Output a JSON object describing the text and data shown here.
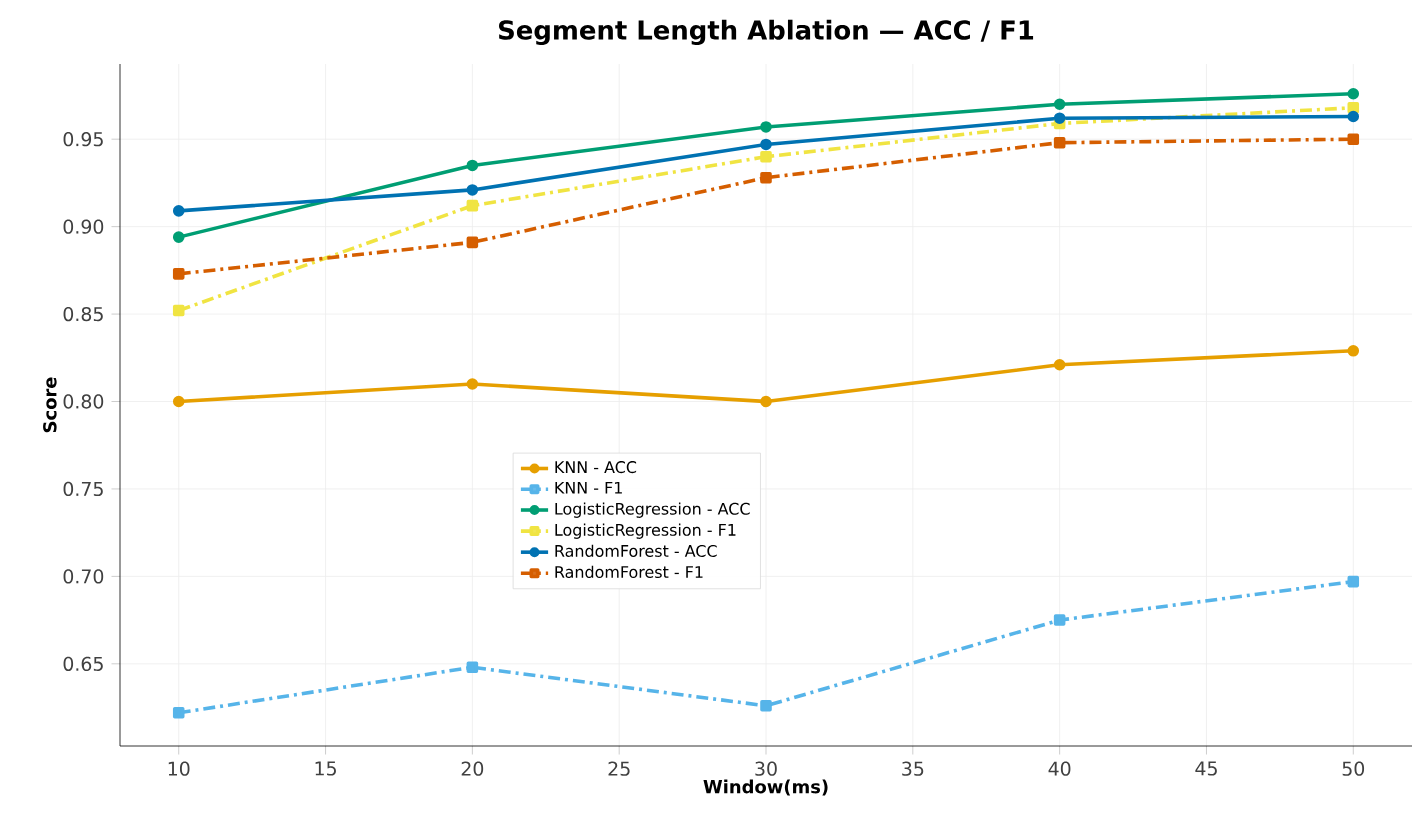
{
  "chart_data": {
    "type": "line",
    "title": "Segment Length Ablation — ACC / F1",
    "xlabel": "Window(ms)",
    "ylabel": "Score",
    "x": [
      10,
      20,
      30,
      40,
      50
    ],
    "series": [
      {
        "name": "KNN - ACC",
        "color": "#e69f00",
        "marker": "circle",
        "line_style": "solid",
        "values": [
          0.8,
          0.81,
          0.8,
          0.821,
          0.829
        ]
      },
      {
        "name": "KNN - F1",
        "color": "#56b4e9",
        "marker": "square",
        "line_style": "dashdot",
        "values": [
          0.622,
          0.648,
          0.626,
          0.675,
          0.697
        ]
      },
      {
        "name": "LogisticRegression - ACC",
        "color": "#009e73",
        "marker": "circle",
        "line_style": "solid",
        "values": [
          0.894,
          0.935,
          0.957,
          0.97,
          0.976
        ]
      },
      {
        "name": "LogisticRegression - F1",
        "color": "#f0e442",
        "marker": "square",
        "line_style": "dashdot",
        "values": [
          0.852,
          0.912,
          0.94,
          0.959,
          0.968
        ]
      },
      {
        "name": "RandomForest - ACC",
        "color": "#0072b2",
        "marker": "circle",
        "line_style": "solid",
        "values": [
          0.909,
          0.921,
          0.947,
          0.962,
          0.963
        ]
      },
      {
        "name": "RandomForest - F1",
        "color": "#d55e00",
        "marker": "square",
        "line_style": "dashdot",
        "values": [
          0.873,
          0.891,
          0.928,
          0.948,
          0.95
        ]
      }
    ],
    "xlim": [
      8,
      52
    ],
    "ylim": [
      0.603,
      0.993
    ],
    "xticks": [
      10,
      15,
      20,
      25,
      30,
      35,
      40,
      45,
      50
    ],
    "yticks": [
      0.65,
      {
        "value": 0.7,
        "label": "0.70"
      },
      0.75,
      {
        "value": 0.8,
        "label": "0.80"
      },
      0.85,
      {
        "value": 0.9,
        "label": "0.90"
      },
      0.95
    ],
    "grid": true,
    "legend": "center"
  }
}
